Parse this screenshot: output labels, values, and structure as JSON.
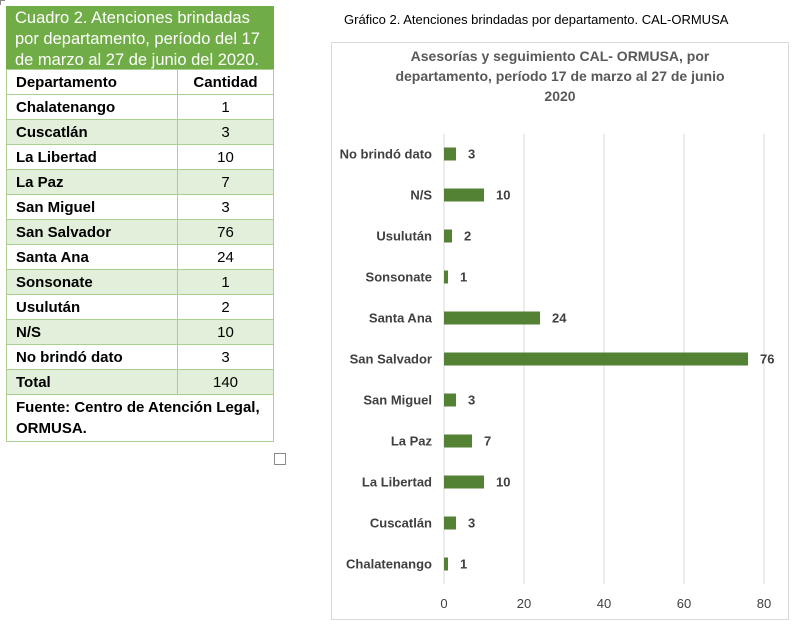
{
  "table": {
    "caption": "Cuadro 2. Atenciones brindadas por departamento, período del 17 de marzo al 27 de junio del 2020.",
    "header": {
      "department": "Departamento",
      "quantity": "Cantidad"
    },
    "rows": [
      {
        "department": "Chalatenango",
        "quantity": "1"
      },
      {
        "department": "Cuscatlán",
        "quantity": "3"
      },
      {
        "department": "La Libertad",
        "quantity": "10"
      },
      {
        "department": "La Paz",
        "quantity": "7"
      },
      {
        "department": "San Miguel",
        "quantity": "3"
      },
      {
        "department": "San Salvador",
        "quantity": "76"
      },
      {
        "department": "Santa Ana",
        "quantity": "24"
      },
      {
        "department": "Sonsonate",
        "quantity": "1"
      },
      {
        "department": "Usulután",
        "quantity": "2"
      },
      {
        "department": "N/S",
        "quantity": "10"
      },
      {
        "department": "No brindó dato",
        "quantity": "3"
      }
    ],
    "total": {
      "label": "Total",
      "value": "140"
    },
    "source": "Fuente: Centro de Atención Legal, ORMUSA."
  },
  "chart_heading": "Gráfico 2. Atenciones brindadas por departamento. CAL-ORMUSA",
  "chart_data": {
    "type": "bar",
    "orientation": "horizontal",
    "title": "Asesorías y seguimiento CAL- ORMUSA, por departamento, período 17 de marzo al 27 de junio 2020",
    "title_lines": [
      "Asesorías y seguimiento CAL- ORMUSA, por",
      "departamento, período 17 de marzo al 27 de junio",
      "2020"
    ],
    "categories": [
      "Chalatenango",
      "Cuscatlán",
      "La Libertad",
      "La Paz",
      "San Miguel",
      "San Salvador",
      "Santa Ana",
      "Sonsonate",
      "Usulután",
      "N/S",
      "No brindó dato"
    ],
    "values": [
      1,
      3,
      10,
      7,
      3,
      76,
      24,
      1,
      2,
      10,
      3
    ],
    "xlim": [
      0,
      80
    ],
    "xticks": [
      0,
      20,
      40,
      60,
      80
    ],
    "xlabel": "",
    "ylabel": "",
    "grid": "vertical",
    "legend": "none",
    "bar_color": "#548235"
  }
}
